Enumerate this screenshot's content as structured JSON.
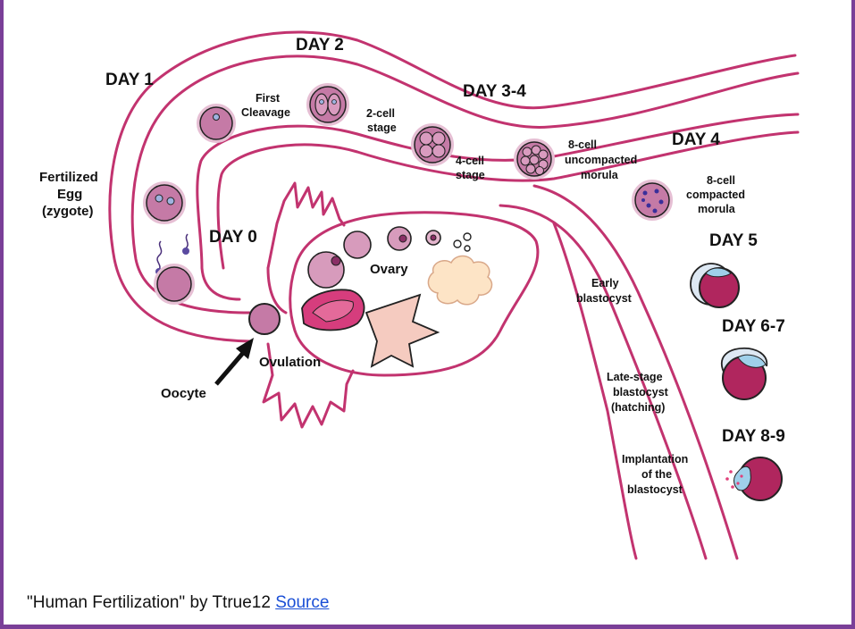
{
  "diagram": {
    "days": {
      "day1": "DAY 1",
      "day2": "DAY 2",
      "day34": "DAY 3-4",
      "day4": "DAY 4",
      "day0": "DAY 0",
      "day5": "DAY 5",
      "day67": "DAY 6-7",
      "day89": "DAY 8-9"
    },
    "labels": {
      "fertilized": [
        "Fertilized",
        "Egg",
        "(zygote)"
      ],
      "first_cleavage": [
        "First",
        "Cleavage"
      ],
      "two_cell": [
        "2-cell",
        "stage"
      ],
      "four_cell": [
        "4-cell",
        "stage"
      ],
      "eight_uncompacted": [
        "8-cell",
        "uncompacted",
        "morula"
      ],
      "eight_compacted": [
        "8-cell",
        "compacted",
        "morula"
      ],
      "ovary": "Ovary",
      "ovulation": "Ovulation",
      "oocyte": "Oocyte",
      "early_blastocyst": [
        "Early",
        "blastocyst"
      ],
      "late_blastocyst": [
        "Late-stage",
        "blastocyst",
        "(hatching)"
      ],
      "implantation": [
        "Implantation",
        "of the",
        "blastocyst"
      ]
    },
    "colors": {
      "tube": "#c2336f",
      "cell_fill": "#c57aa6",
      "cell_ring": "#e6bfd4",
      "blastocyst": "#b0265e",
      "trophoblast": "#9fd0ea",
      "frame": "#7a3f98"
    }
  },
  "caption": {
    "text": "\"Human Fertilization\" by Ttrue12",
    "link": "Source"
  }
}
